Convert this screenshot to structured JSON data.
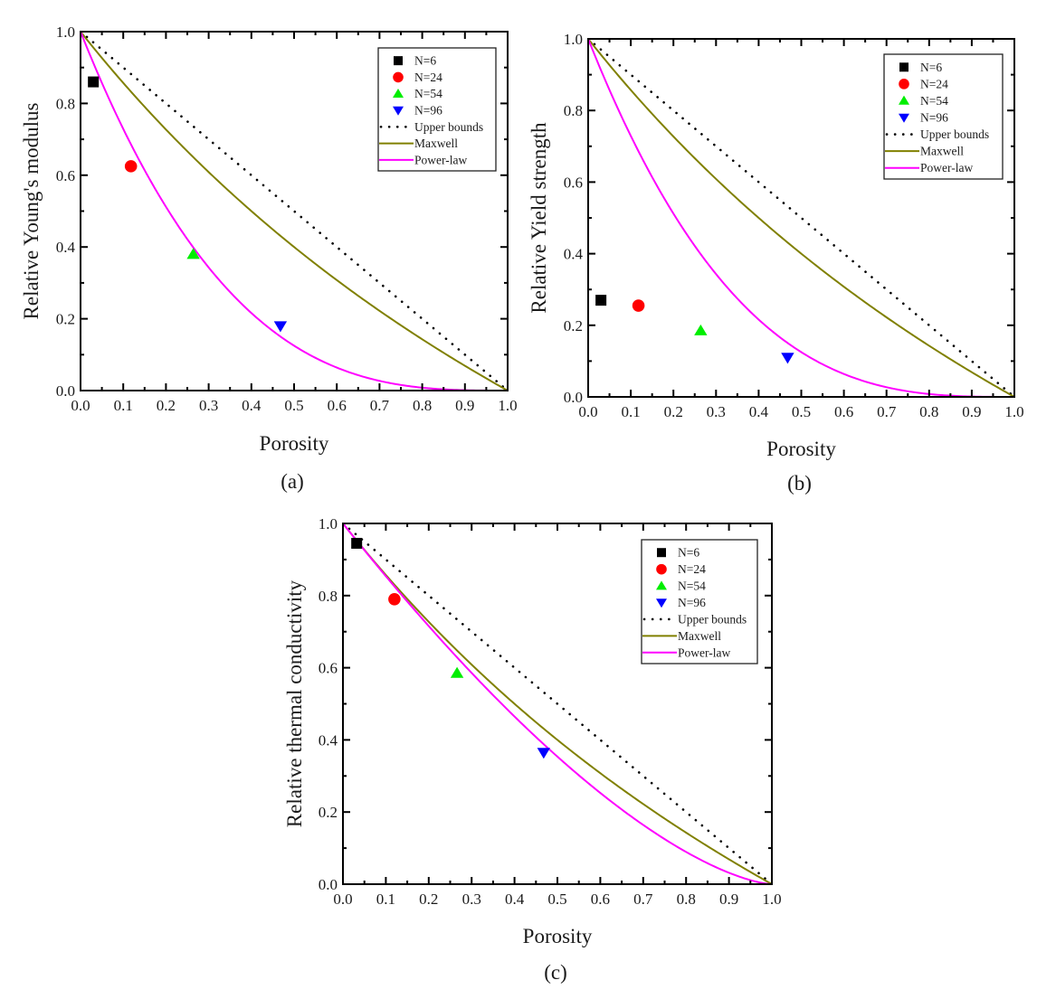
{
  "chart_data": [
    {
      "type": "scatter",
      "panel_label": "(a)",
      "title": "",
      "xlabel": "Porosity",
      "ylabel": "Relative Young's modulus",
      "xlim": [
        0.0,
        1.0
      ],
      "ylim": [
        0.0,
        1.0
      ],
      "xticks": [
        "0.0",
        "0.1",
        "0.2",
        "0.3",
        "0.4",
        "0.5",
        "0.6",
        "0.7",
        "0.8",
        "0.9",
        "1.0"
      ],
      "yticks": [
        "0.0",
        "0.2",
        "0.4",
        "0.6",
        "0.8",
        "1.0"
      ],
      "grid": false,
      "legend_position": "top-right",
      "series": [
        {
          "name": "N=6",
          "kind": "marker",
          "marker": "square",
          "color": "#000000",
          "x": [
            0.03
          ],
          "y": [
            0.86
          ]
        },
        {
          "name": "N=24",
          "kind": "marker",
          "marker": "circle",
          "color": "#ff0000",
          "x": [
            0.118
          ],
          "y": [
            0.625
          ]
        },
        {
          "name": "N=54",
          "kind": "marker",
          "marker": "triangle-up",
          "color": "#00ee00",
          "x": [
            0.264
          ],
          "y": [
            0.38
          ]
        },
        {
          "name": "N=96",
          "kind": "marker",
          "marker": "triangle-down",
          "color": "#0000ff",
          "x": [
            0.468
          ],
          "y": [
            0.18
          ]
        },
        {
          "name": "Upper bounds",
          "kind": "line",
          "style": "dotted",
          "color": "#000000",
          "model": "1-p"
        },
        {
          "name": "Maxwell",
          "kind": "line",
          "style": "solid",
          "color": "#808000",
          "model": "2(1-p)/(2+p)"
        },
        {
          "name": "Power-law",
          "kind": "line",
          "style": "solid",
          "color": "#ff00ff",
          "model": "(1-p)^3",
          "exponent": 3
        }
      ]
    },
    {
      "type": "scatter",
      "panel_label": "(b)",
      "title": "",
      "xlabel": "Porosity",
      "ylabel": "Relative Yield strength",
      "xlim": [
        0.0,
        1.0
      ],
      "ylim": [
        0.0,
        1.0
      ],
      "xticks": [
        "0.0",
        "0.1",
        "0.2",
        "0.3",
        "0.4",
        "0.5",
        "0.6",
        "0.7",
        "0.8",
        "0.9",
        "1.0"
      ],
      "yticks": [
        "0.0",
        "0.2",
        "0.4",
        "0.6",
        "0.8",
        "1.0"
      ],
      "grid": false,
      "legend_position": "top-right",
      "series": [
        {
          "name": "N=6",
          "kind": "marker",
          "marker": "square",
          "color": "#000000",
          "x": [
            0.03
          ],
          "y": [
            0.27
          ]
        },
        {
          "name": "N=24",
          "kind": "marker",
          "marker": "circle",
          "color": "#ff0000",
          "x": [
            0.118
          ],
          "y": [
            0.255
          ]
        },
        {
          "name": "N=54",
          "kind": "marker",
          "marker": "triangle-up",
          "color": "#00ee00",
          "x": [
            0.264
          ],
          "y": [
            0.185
          ]
        },
        {
          "name": "N=96",
          "kind": "marker",
          "marker": "triangle-down",
          "color": "#0000ff",
          "x": [
            0.468
          ],
          "y": [
            0.11
          ]
        },
        {
          "name": "Upper bounds",
          "kind": "line",
          "style": "dotted",
          "color": "#000000",
          "model": "1-p"
        },
        {
          "name": "Maxwell",
          "kind": "line",
          "style": "solid",
          "color": "#808000",
          "model": "2(1-p)/(2+p)"
        },
        {
          "name": "Power-law",
          "kind": "line",
          "style": "solid",
          "color": "#ff00ff",
          "model": "(1-p)^3",
          "exponent": 3
        }
      ]
    },
    {
      "type": "scatter",
      "panel_label": "(c)",
      "title": "",
      "xlabel": "Porosity",
      "ylabel": "Relative thermal conductivity",
      "xlim": [
        0.0,
        1.0
      ],
      "ylim": [
        0.0,
        1.0
      ],
      "xticks": [
        "0.0",
        "0.1",
        "0.2",
        "0.3",
        "0.4",
        "0.5",
        "0.6",
        "0.7",
        "0.8",
        "0.9",
        "1.0"
      ],
      "yticks": [
        "0.0",
        "0.2",
        "0.4",
        "0.6",
        "0.8",
        "1.0"
      ],
      "grid": false,
      "legend_position": "top-right",
      "series": [
        {
          "name": "N=6",
          "kind": "marker",
          "marker": "square",
          "color": "#000000",
          "x": [
            0.032
          ],
          "y": [
            0.945
          ]
        },
        {
          "name": "N=24",
          "kind": "marker",
          "marker": "circle",
          "color": "#ff0000",
          "x": [
            0.12
          ],
          "y": [
            0.79
          ]
        },
        {
          "name": "N=54",
          "kind": "marker",
          "marker": "triangle-up",
          "color": "#00ee00",
          "x": [
            0.266
          ],
          "y": [
            0.585
          ]
        },
        {
          "name": "N=96",
          "kind": "marker",
          "marker": "triangle-down",
          "color": "#0000ff",
          "x": [
            0.468
          ],
          "y": [
            0.365
          ]
        },
        {
          "name": "Upper bounds",
          "kind": "line",
          "style": "dotted",
          "color": "#000000",
          "model": "1-p"
        },
        {
          "name": "Maxwell",
          "kind": "line",
          "style": "solid",
          "color": "#808000",
          "model": "2(1-p)/(2+p)"
        },
        {
          "name": "Power-law",
          "kind": "line",
          "style": "solid",
          "color": "#ff00ff",
          "model": "(1-p)^1.5",
          "exponent": 1.5
        }
      ]
    }
  ]
}
